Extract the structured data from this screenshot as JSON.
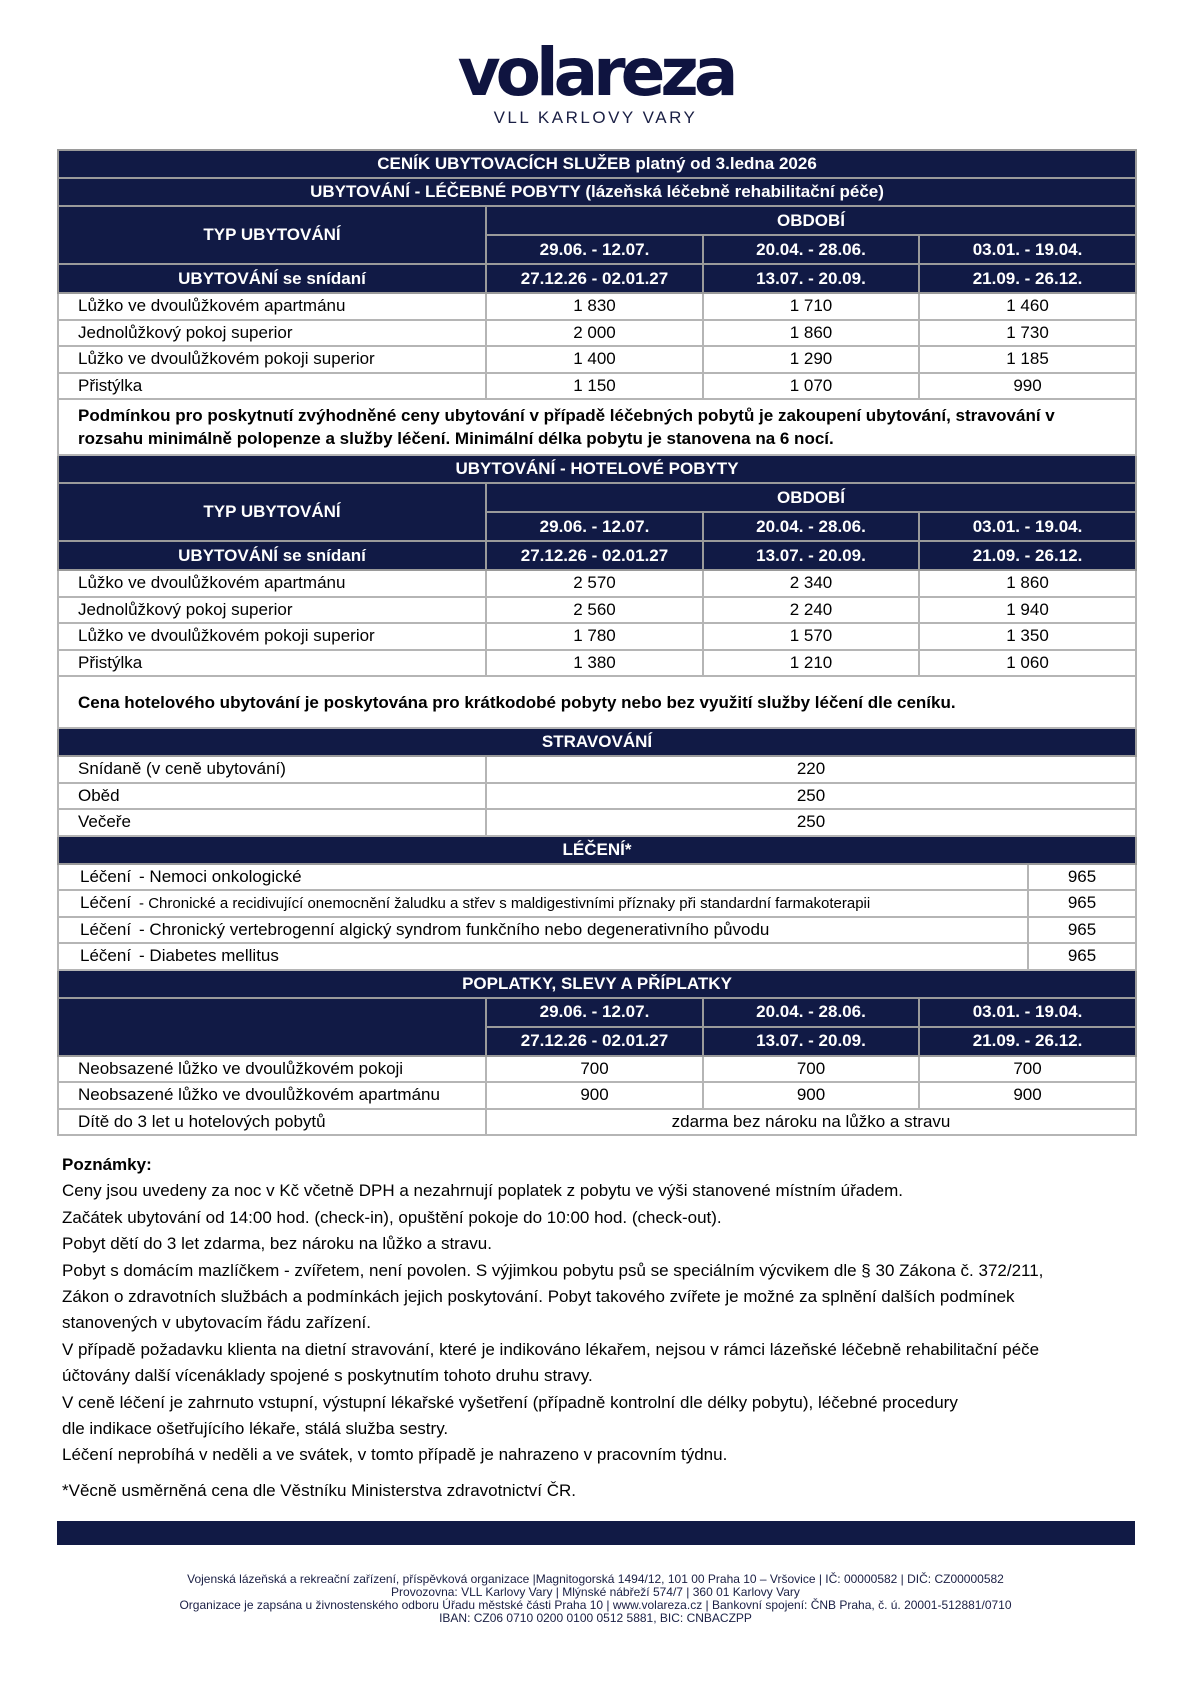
{
  "logo": {
    "word": "volareza",
    "subtitle": "VLL KARLOVY VARY"
  },
  "title": "CENÍK UBYTOVACÍCH SLUŽEB platný od 3.ledna 2026",
  "periods": [
    [
      "29.06. - 12.07.",
      "27.12.26 - 02.01.27"
    ],
    [
      "20.04. - 28.06.",
      "13.07. - 20.09."
    ],
    [
      "03.01. - 19.04.",
      "21.09. - 26.12."
    ]
  ],
  "spa": {
    "title": "UBYTOVÁNÍ - LÉČEBNÉ POBYTY (lázeňská léčebně rehabilitační péče)",
    "type_label": "TYP UBYTOVÁNÍ",
    "period_label": "OBDOBÍ",
    "sub_label": "UBYTOVÁNÍ se snídaní",
    "rows": [
      [
        "Lůžko ve dvoulůžkovém apartmánu",
        "1 830",
        "1 710",
        "1 460"
      ],
      [
        "Jednolůžkový pokoj superior",
        "2 000",
        "1 860",
        "1 730"
      ],
      [
        "Lůžko ve dvoulůžkovém pokoji superior",
        "1 400",
        "1 290",
        "1 185"
      ],
      [
        "Přistýlka",
        "1 150",
        "1 070",
        "990"
      ]
    ],
    "note": "Podmínkou pro poskytnutí zvýhodněné ceny ubytování v případě léčebných pobytů je zakoupení ubytování, stravování v rozsahu minimálně polopenze a služby léčení. Minimální délka pobytu je stanovena na 6 nocí."
  },
  "hotel": {
    "title": "UBYTOVÁNÍ - HOTELOVÉ POBYTY",
    "type_label": "TYP UBYTOVÁNÍ",
    "period_label": "OBDOBÍ",
    "sub_label": "UBYTOVÁNÍ se snídaní",
    "rows": [
      [
        "Lůžko ve dvoulůžkovém apartmánu",
        "2 570",
        "2 340",
        "1 860"
      ],
      [
        "Jednolůžkový pokoj superior",
        "2 560",
        "2 240",
        "1 940"
      ],
      [
        "Lůžko ve dvoulůžkovém pokoji superior",
        "1 780",
        "1 570",
        "1 350"
      ],
      [
        "Přistýlka",
        "1 380",
        "1 210",
        "1 060"
      ]
    ],
    "note": "Cena hotelového ubytování je poskytována pro krátkodobé pobyty nebo bez využití služby léčení dle ceníku."
  },
  "meals": {
    "title": "STRAVOVÁNÍ",
    "rows": [
      [
        "Snídaně (v ceně ubytování)",
        "220"
      ],
      [
        "Oběd",
        "250"
      ],
      [
        "Večeře",
        "250"
      ]
    ]
  },
  "treatment": {
    "title": "LÉČENÍ*",
    "prefix": "Léčení",
    "rows": [
      [
        "- Nemoci onkologické",
        "965"
      ],
      [
        "- Chronické a recidivující onemocnění žaludku a střev s maldigestivními příznaky při standardní farmakoterapii",
        "965"
      ],
      [
        "- Chronický vertebrogenní algický syndrom funkčního nebo degenerativního původu",
        "965"
      ],
      [
        "- Diabetes mellitus",
        "965"
      ]
    ]
  },
  "fees": {
    "title": "POPLATKY, SLEVY A PŘÍPLATKY",
    "rows": [
      [
        "Neobsazené lůžko ve dvoulůžkovém pokoji",
        "700",
        "700",
        "700"
      ],
      [
        "Neobsazené lůžko ve dvoulůžkovém apartmánu",
        "900",
        "900",
        "900"
      ]
    ],
    "child": [
      "Dítě do 3 let u hotelových pobytů",
      "zdarma bez nároku na lůžko a stravu"
    ]
  },
  "notes": {
    "title": "Poznámky:",
    "lines": [
      "Ceny jsou uvedeny za noc v Kč včetně DPH a nezahrnují poplatek z pobytu ve výši stanovené místním úřadem.",
      "Začátek ubytování od 14:00 hod. (check-in), opuštění pokoje do 10:00 hod. (check-out).",
      "Pobyt dětí do 3 let zdarma, bez nároku na lůžko a stravu.",
      "Pobyt s domácím mazlíčkem - zvířetem, není povolen. S výjimkou pobytu psů se speciálním výcvikem dle § 30 Zákona č. 372/211,",
      "Zákon o zdravotních službách a podmínkách jejich poskytování. Pobyt takového zvířete je možné za splnění dalších podmínek",
      "stanovených v ubytovacím řádu zařízení.",
      "V případě požadavku klienta na dietní stravování, které je indikováno lékařem, nejsou v rámci lázeňské léčebně rehabilitační péče",
      "účtovány další vícenáklady spojené s poskytnutím tohoto druhu stravy.",
      "V ceně léčení je zahrnuto vstupní, výstupní lékařské vyšetření (případně kontrolní dle délky pobytu), léčebné procedury",
      "dle indikace ošetřujícího lékaře, stálá služba sestry.",
      "Léčení neprobíhá v neděli a ve svátek, v tomto případě je nahrazeno v pracovním týdnu."
    ],
    "footnote": "*Věcně usměrněná cena dle Věstníku Ministerstva zdravotnictví ČR."
  },
  "footer": [
    "Vojenská lázeňská a rekreační zařízení, příspěvková organizace |Magnitogorská 1494/12, 101 00 Praha 10 – Vršovice | IČ: 00000582 | DIČ: CZ00000582",
    "Provozovna: VLL Karlovy Vary | Mlýnské nábřeží 574/7 | 360 01 Karlovy Vary",
    "Organizace je zapsána u živnostenského odboru Úřadu městské části Praha 10 | www.volareza.cz | Bankovní spojení: ČNB Praha, č. ú. 20001-512881/0710",
    "IBAN: CZ06 0710 0200 0100 0512 5881, BIC: CNBACZPP"
  ],
  "colors": {
    "navy": "#111a45"
  }
}
